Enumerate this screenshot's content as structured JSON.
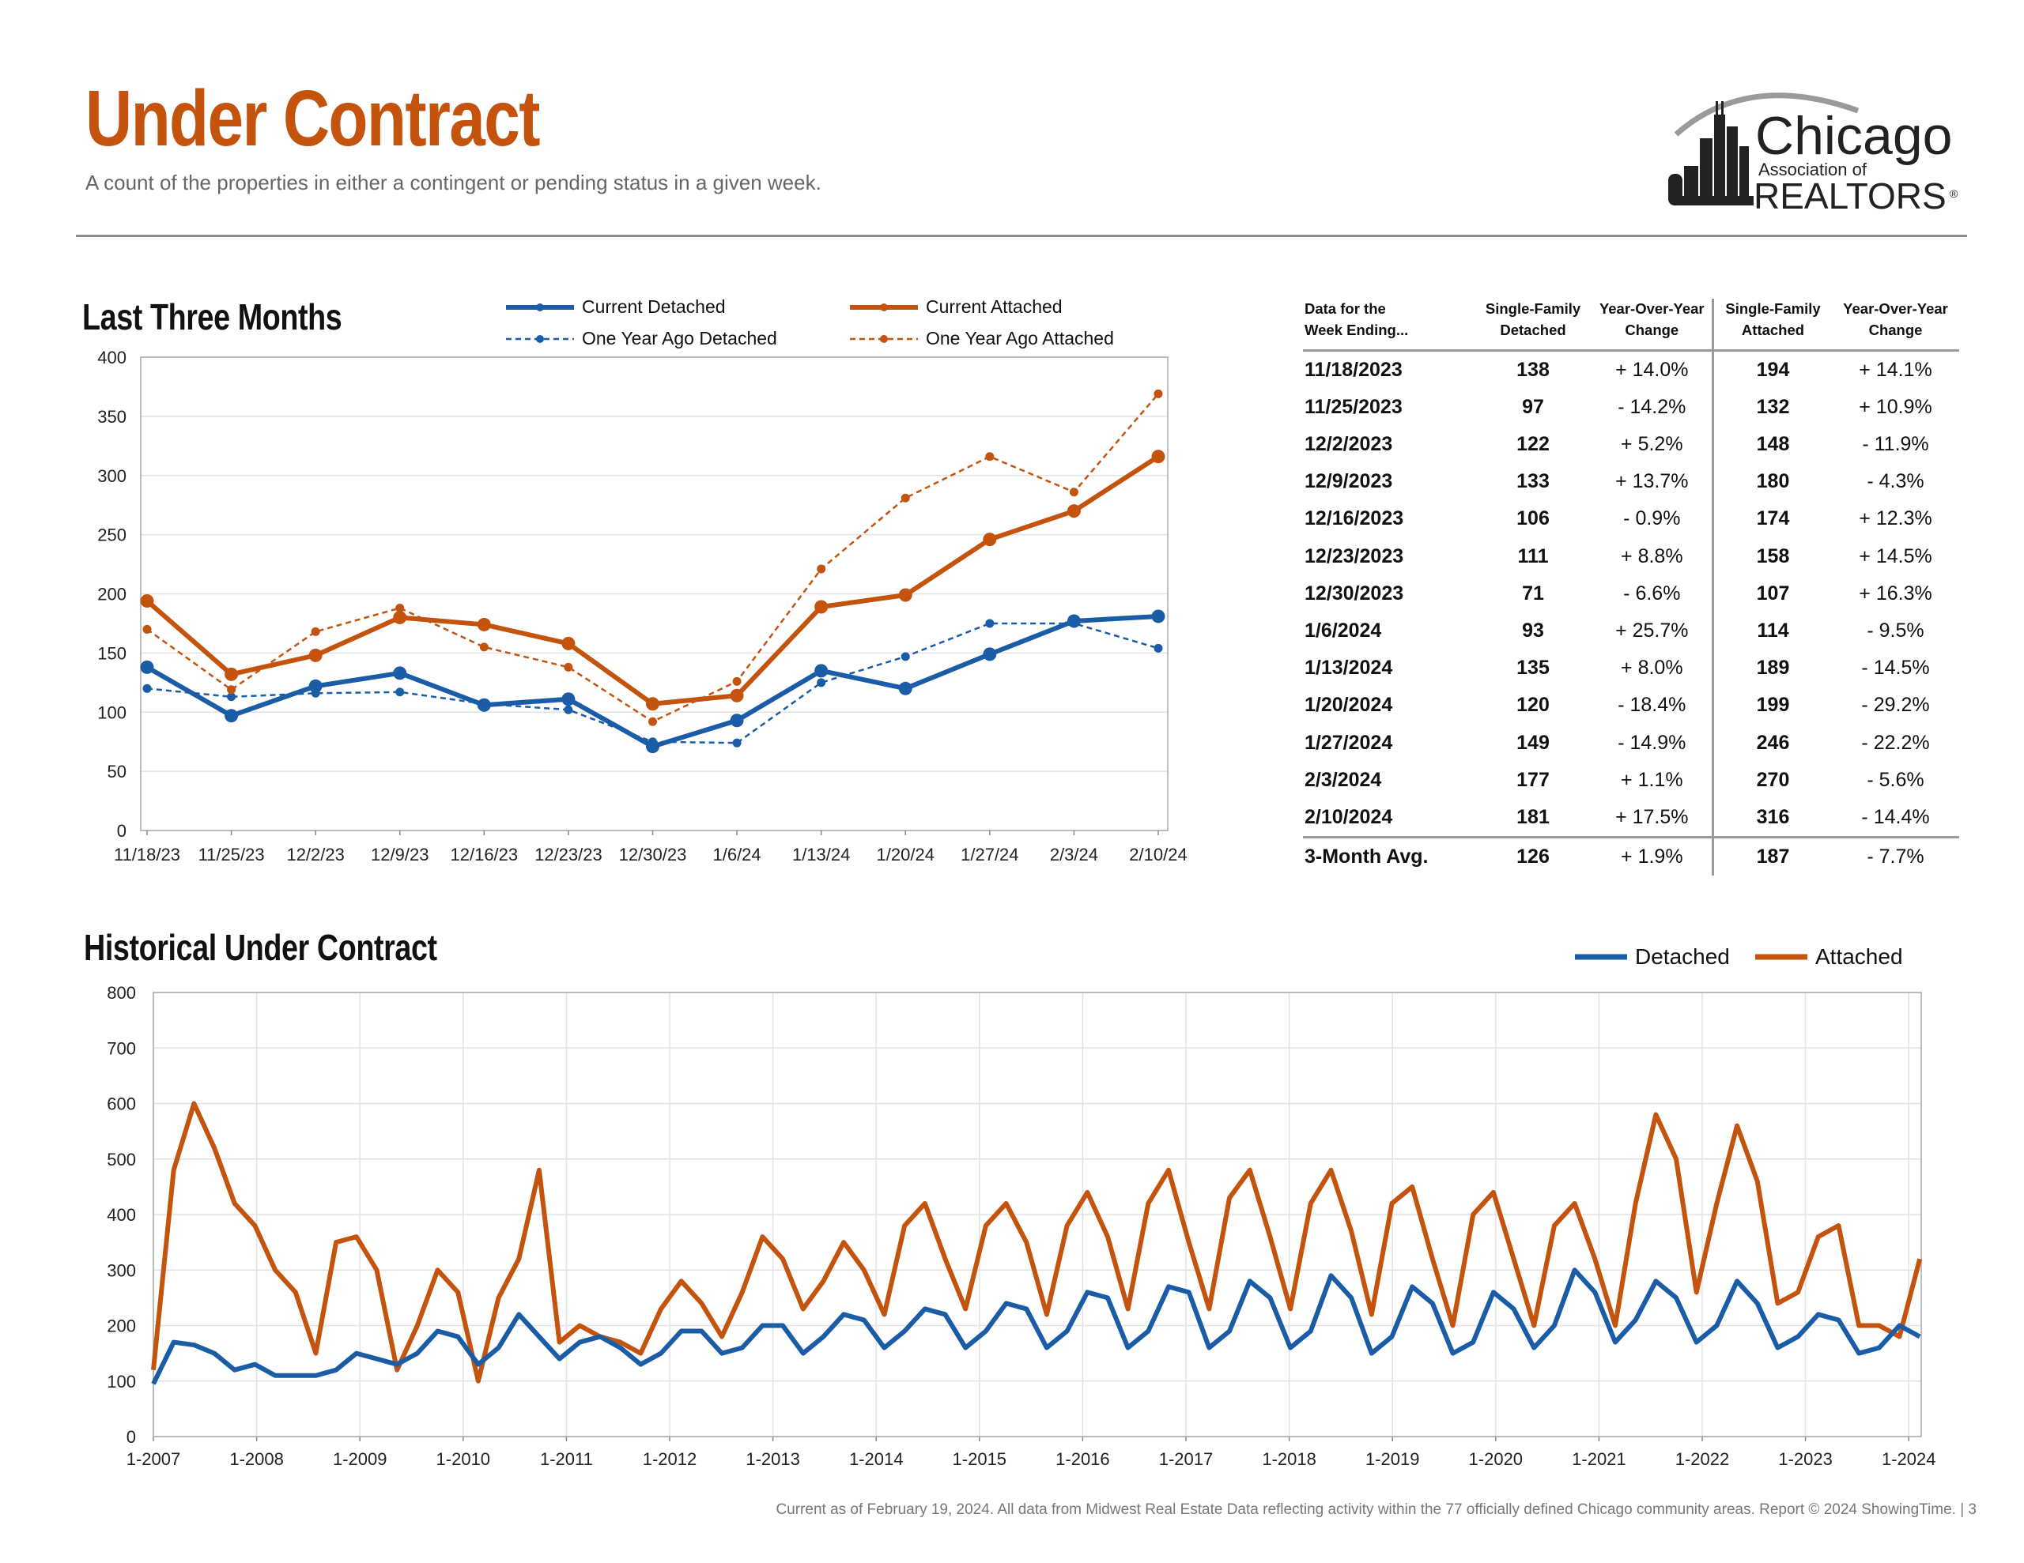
{
  "header": {
    "title": "Under Contract",
    "subtitle": "A count of the properties in either a contingent or pending status in a given week."
  },
  "logo": {
    "line1": "Chicago",
    "line2": "Association of",
    "line3": "REALTORS",
    "mark": "®"
  },
  "colors": {
    "brand_orange": "#c4530e",
    "detached_blue": "#1a5ca6",
    "attached_orange": "#c4530e"
  },
  "chart_data": [
    {
      "type": "line",
      "title": "Last Three Months",
      "categories": [
        "11/18/23",
        "11/25/23",
        "12/2/23",
        "12/9/23",
        "12/16/23",
        "12/23/23",
        "12/30/23",
        "1/6/24",
        "1/13/24",
        "1/20/24",
        "1/27/24",
        "2/3/24",
        "2/10/24"
      ],
      "series": [
        {
          "name": "Current Detached",
          "color": "#1a5ca6",
          "style": "solid",
          "values": [
            138,
            97,
            122,
            133,
            106,
            111,
            71,
            93,
            135,
            120,
            149,
            177,
            181
          ]
        },
        {
          "name": "One Year Ago Detached",
          "color": "#1a5ca6",
          "style": "dashed",
          "values": [
            120,
            113,
            116,
            117,
            107,
            102,
            75,
            74,
            125,
            147,
            175,
            175,
            154
          ]
        },
        {
          "name": "Current Attached",
          "color": "#c4530e",
          "style": "solid",
          "values": [
            194,
            132,
            148,
            180,
            174,
            158,
            107,
            114,
            189,
            199,
            246,
            270,
            316
          ]
        },
        {
          "name": "One Year Ago Attached",
          "color": "#c4530e",
          "style": "dashed",
          "values": [
            170,
            119,
            168,
            188,
            155,
            138,
            92,
            126,
            221,
            281,
            316,
            286,
            369
          ]
        }
      ],
      "ylim": [
        0,
        400
      ],
      "yticks": [
        0,
        50,
        100,
        150,
        200,
        250,
        300,
        350,
        400
      ],
      "grid": true,
      "legend": "top"
    },
    {
      "type": "line",
      "title": "Historical Under Contract",
      "x_start": "1-2007",
      "x_ticks": [
        "1-2007",
        "1-2008",
        "1-2009",
        "1-2010",
        "1-2011",
        "1-2012",
        "1-2013",
        "1-2014",
        "1-2015",
        "1-2016",
        "1-2017",
        "1-2018",
        "1-2019",
        "1-2020",
        "1-2021",
        "1-2022",
        "1-2023",
        "1-2024"
      ],
      "ylim": [
        0,
        800
      ],
      "yticks": [
        0,
        100,
        200,
        300,
        400,
        500,
        600,
        700,
        800
      ],
      "grid": true,
      "legend": "top-right",
      "resolution": "quarterly, approximate",
      "series": [
        {
          "name": "Detached",
          "color": "#1a5ca6",
          "values": [
            95,
            170,
            165,
            150,
            120,
            130,
            110,
            110,
            110,
            120,
            150,
            140,
            130,
            150,
            190,
            180,
            130,
            160,
            220,
            180,
            140,
            170,
            180,
            160,
            130,
            150,
            190,
            190,
            150,
            160,
            200,
            200,
            150,
            180,
            220,
            210,
            160,
            190,
            230,
            220,
            160,
            190,
            240,
            230,
            160,
            190,
            260,
            250,
            160,
            190,
            270,
            260,
            160,
            190,
            280,
            250,
            160,
            190,
            290,
            250,
            150,
            180,
            270,
            240,
            150,
            170,
            260,
            230,
            160,
            200,
            300,
            260,
            170,
            210,
            280,
            250,
            170,
            200,
            280,
            240,
            160,
            180,
            220,
            210,
            150,
            160,
            200,
            180
          ]
        },
        {
          "name": "Attached",
          "color": "#c4530e",
          "values": [
            120,
            480,
            600,
            520,
            420,
            380,
            300,
            260,
            150,
            350,
            360,
            300,
            120,
            200,
            300,
            260,
            100,
            250,
            320,
            480,
            170,
            200,
            180,
            170,
            150,
            230,
            280,
            240,
            180,
            260,
            360,
            320,
            230,
            280,
            350,
            300,
            220,
            380,
            420,
            320,
            230,
            380,
            420,
            350,
            220,
            380,
            440,
            360,
            230,
            420,
            480,
            350,
            230,
            430,
            480,
            360,
            230,
            420,
            480,
            370,
            220,
            420,
            450,
            320,
            200,
            400,
            440,
            320,
            200,
            380,
            420,
            320,
            200,
            420,
            580,
            500,
            260,
            420,
            560,
            460,
            240,
            260,
            360,
            380,
            200,
            200,
            180,
            320
          ]
        }
      ]
    }
  ],
  "legends": {
    "top": [
      "Current Detached",
      "One Year Ago Detached",
      "Current Attached",
      "One Year Ago Attached"
    ],
    "hist": [
      "Detached",
      "Attached"
    ]
  },
  "table": {
    "headers": [
      "Data for the\nWeek Ending...",
      "Single-Family\nDetached",
      "Year-Over-Year\nChange",
      "Single-Family\nAttached",
      "Year-Over-Year\nChange"
    ],
    "rows": [
      [
        "11/18/2023",
        "138",
        "+ 14.0%",
        "194",
        "+ 14.1%"
      ],
      [
        "11/25/2023",
        "97",
        "- 14.2%",
        "132",
        "+ 10.9%"
      ],
      [
        "12/2/2023",
        "122",
        "+ 5.2%",
        "148",
        "- 11.9%"
      ],
      [
        "12/9/2023",
        "133",
        "+ 13.7%",
        "180",
        "- 4.3%"
      ],
      [
        "12/16/2023",
        "106",
        "- 0.9%",
        "174",
        "+ 12.3%"
      ],
      [
        "12/23/2023",
        "111",
        "+ 8.8%",
        "158",
        "+ 14.5%"
      ],
      [
        "12/30/2023",
        "71",
        "- 6.6%",
        "107",
        "+ 16.3%"
      ],
      [
        "1/6/2024",
        "93",
        "+ 25.7%",
        "114",
        "- 9.5%"
      ],
      [
        "1/13/2024",
        "135",
        "+ 8.0%",
        "189",
        "- 14.5%"
      ],
      [
        "1/20/2024",
        "120",
        "- 18.4%",
        "199",
        "- 29.2%"
      ],
      [
        "1/27/2024",
        "149",
        "- 14.9%",
        "246",
        "- 22.2%"
      ],
      [
        "2/3/2024",
        "177",
        "+ 1.1%",
        "270",
        "- 5.6%"
      ],
      [
        "2/10/2024",
        "181",
        "+ 17.5%",
        "316",
        "- 14.4%"
      ]
    ],
    "avg": [
      "3-Month Avg.",
      "126",
      "+ 1.9%",
      "187",
      "- 7.7%"
    ]
  },
  "footer": "Current as of February 19, 2024. All data from Midwest Real Estate Data reflecting activity within the 77 officially defined Chicago community areas. Report © 2024 ShowingTime.  |  3"
}
